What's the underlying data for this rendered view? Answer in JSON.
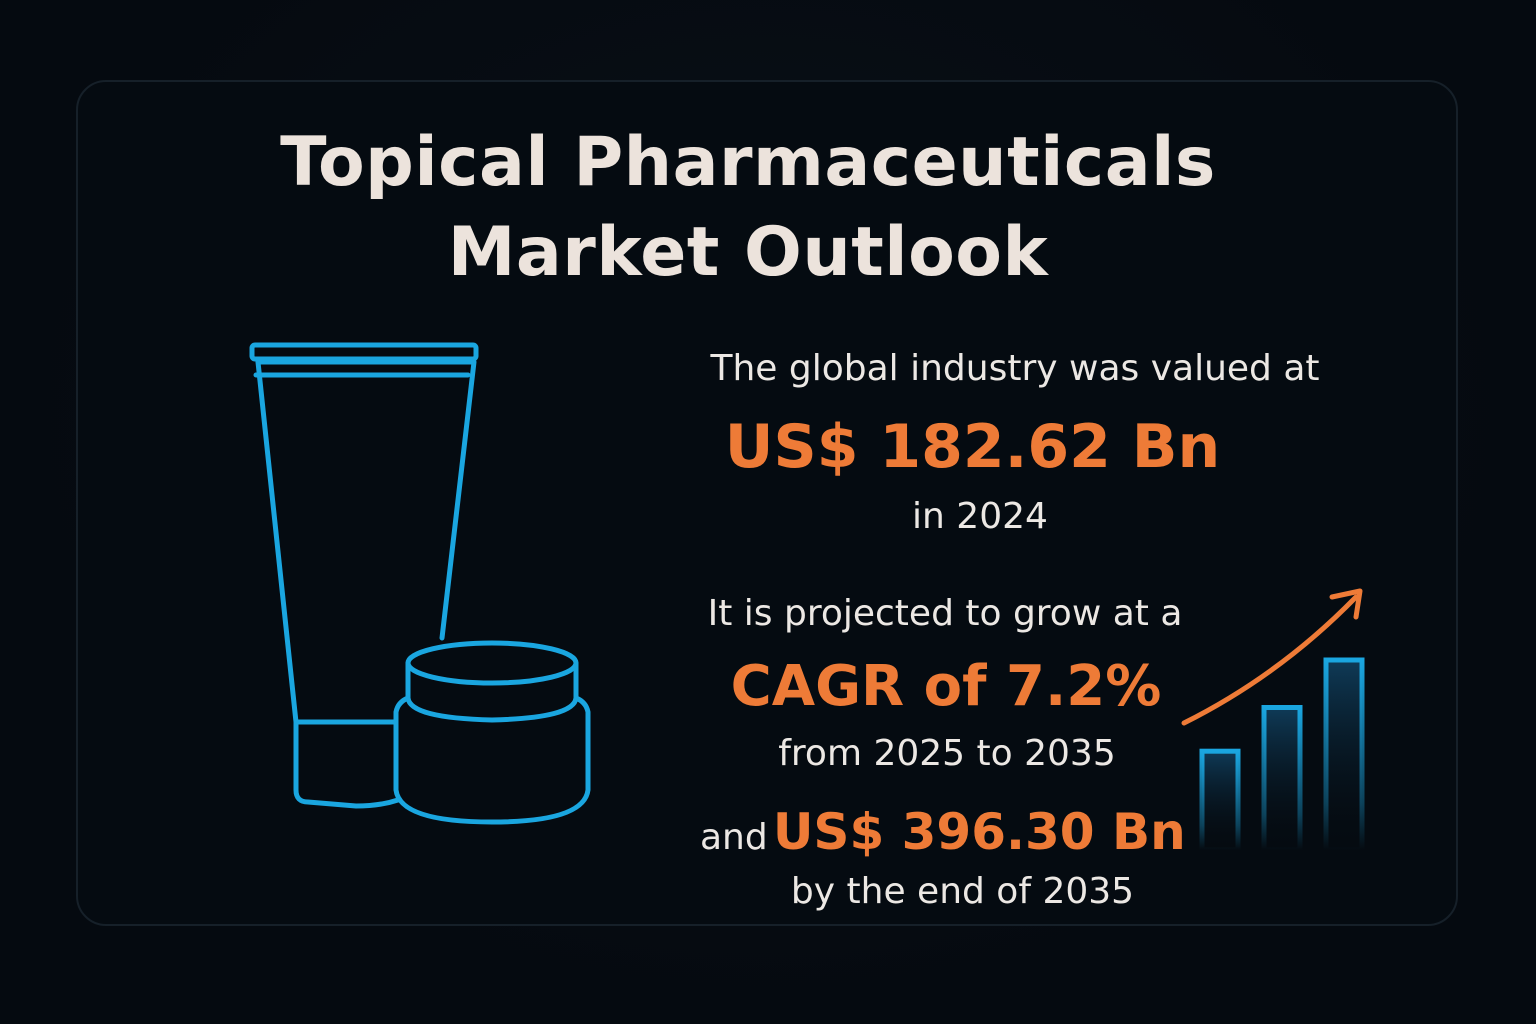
{
  "title": {
    "line1": "Topical Pharmaceuticals",
    "line2": "Market Outlook"
  },
  "stats": {
    "valued_prefix": "The global industry was valued at",
    "value_2024": "US$ 182.62 Bn",
    "value_year": "in 2024",
    "projection_prefix": "It is projected to grow at a",
    "cagr": "CAGR of 7.2%",
    "cagr_period": "from 2025 to 2035",
    "and_label": "and",
    "value_2035": "US$ 396.30 Bn",
    "value_2035_suffix": "by the end of 2035"
  },
  "icons": {
    "product": "cream-tube-and-jar-icon",
    "growth": "growth-chart-icon"
  },
  "growth_chart": {
    "levels": [
      0.52,
      0.75,
      1.0
    ]
  },
  "colors": {
    "background": "#050a10",
    "title": "#ece3dc",
    "text": "#ece8e4",
    "accent": "#ee7b37",
    "line_icon": "#1aa6e0"
  }
}
